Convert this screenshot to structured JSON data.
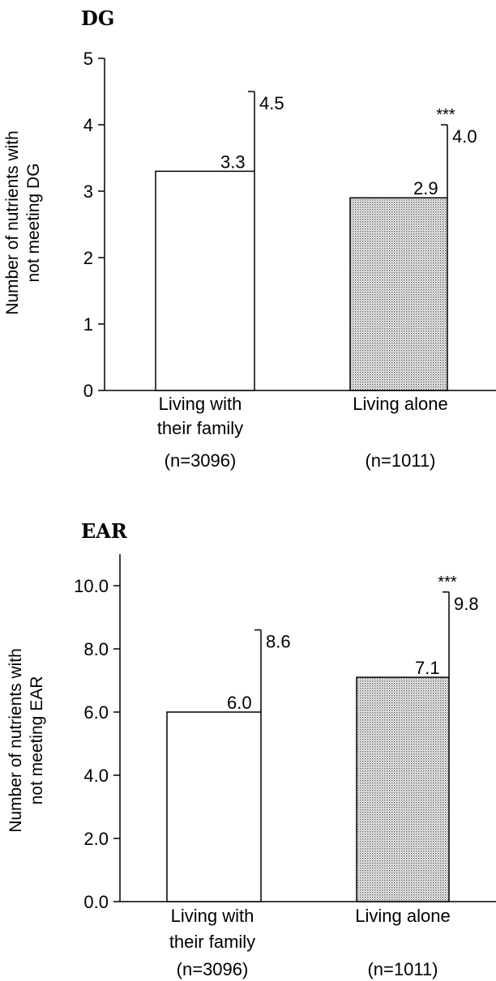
{
  "chart_data": [
    {
      "type": "bar",
      "title": "DG",
      "ylabel": [
        "Number of nutrients with",
        "not meeting DG"
      ],
      "ylim": [
        0,
        5
      ],
      "yticks": [
        "0",
        "1",
        "2",
        "3",
        "4",
        "5"
      ],
      "categories": [
        [
          "Living with",
          "their family",
          "(n=3096)"
        ],
        [
          "Living alone",
          "",
          "(n=1011)"
        ]
      ],
      "values": [
        3.3,
        2.9
      ],
      "value_labels": [
        "3.3",
        "2.9"
      ],
      "errors_upper": [
        4.5,
        4.0
      ],
      "error_labels": [
        "4.5",
        "4.0"
      ],
      "significance": [
        "",
        "***"
      ],
      "fills": [
        "#ffffff",
        "pattern-dots"
      ]
    },
    {
      "type": "bar",
      "title": "EAR",
      "ylabel": [
        "Number of nutrients with",
        "not meeting EAR"
      ],
      "ylim": [
        0,
        11
      ],
      "yticks": [
        "0.0",
        "2.0",
        "4.0",
        "6.0",
        "8.0",
        "10.0"
      ],
      "categories": [
        [
          "Living with",
          "their family",
          "(n=3096)"
        ],
        [
          "Living alone",
          "",
          "(n=1011)"
        ]
      ],
      "values": [
        6.0,
        7.1
      ],
      "value_labels": [
        "6.0",
        "7.1"
      ],
      "errors_upper": [
        8.6,
        9.8
      ],
      "error_labels": [
        "8.6",
        "9.8"
      ],
      "significance": [
        "",
        "***"
      ],
      "fills": [
        "#ffffff",
        "pattern-dots"
      ]
    }
  ]
}
